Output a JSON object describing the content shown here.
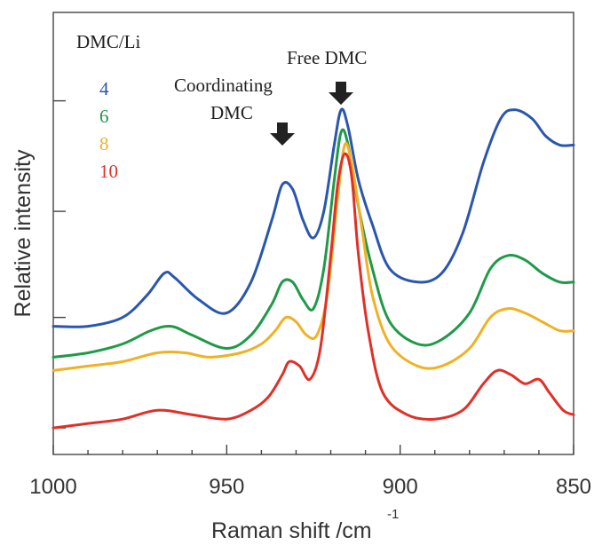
{
  "chart_data": {
    "type": "line",
    "title": "",
    "xlabel": "Raman shift /cm",
    "xlabel_superscript": "-1",
    "ylabel": "Relative intensity",
    "xlim": [
      1000,
      850
    ],
    "x_reversed": true,
    "y_tick_labels_shown": false,
    "x_ticks": [
      {
        "value": 1000,
        "label": "1000"
      },
      {
        "value": 950,
        "label": "950"
      },
      {
        "value": 900,
        "label": "900"
      },
      {
        "value": 850,
        "label": "850"
      }
    ],
    "legend": {
      "title": "DMC/Li",
      "placement": "top-left",
      "entries": [
        {
          "label": "4",
          "color": "#2a56b0"
        },
        {
          "label": "6",
          "color": "#1f9a48"
        },
        {
          "label": "8",
          "color": "#f0b124"
        },
        {
          "label": "10",
          "color": "#e03028"
        }
      ]
    },
    "annotations": [
      {
        "text_lines": [
          "Coordinating",
          "DMC"
        ],
        "arrow_x": 932
      },
      {
        "text_lines": [
          "Free DMC"
        ],
        "arrow_x": 917
      }
    ],
    "series": [
      {
        "name": "4",
        "color": "#2a56b0",
        "points": [
          [
            1000,
            0.29
          ],
          [
            990,
            0.29
          ],
          [
            980,
            0.31
          ],
          [
            973,
            0.36
          ],
          [
            968,
            0.41
          ],
          [
            965,
            0.4
          ],
          [
            958,
            0.35
          ],
          [
            950,
            0.32
          ],
          [
            943,
            0.39
          ],
          [
            937,
            0.53
          ],
          [
            934,
            0.61
          ],
          [
            931,
            0.6
          ],
          [
            928,
            0.53
          ],
          [
            925,
            0.49
          ],
          [
            922,
            0.55
          ],
          [
            919,
            0.7
          ],
          [
            917,
            0.78
          ],
          [
            915,
            0.74
          ],
          [
            912,
            0.62
          ],
          [
            908,
            0.52
          ],
          [
            903,
            0.42
          ],
          [
            895,
            0.39
          ],
          [
            888,
            0.41
          ],
          [
            882,
            0.5
          ],
          [
            876,
            0.66
          ],
          [
            871,
            0.76
          ],
          [
            867,
            0.78
          ],
          [
            862,
            0.76
          ],
          [
            858,
            0.72
          ],
          [
            854,
            0.7
          ],
          [
            850,
            0.7
          ]
        ]
      },
      {
        "name": "6",
        "color": "#1f9a48",
        "points": [
          [
            1000,
            0.22
          ],
          [
            990,
            0.23
          ],
          [
            980,
            0.25
          ],
          [
            972,
            0.28
          ],
          [
            966,
            0.29
          ],
          [
            960,
            0.27
          ],
          [
            950,
            0.24
          ],
          [
            943,
            0.27
          ],
          [
            937,
            0.34
          ],
          [
            934,
            0.39
          ],
          [
            931,
            0.39
          ],
          [
            928,
            0.35
          ],
          [
            925,
            0.33
          ],
          [
            922,
            0.42
          ],
          [
            919,
            0.62
          ],
          [
            917,
            0.73
          ],
          [
            915,
            0.7
          ],
          [
            912,
            0.56
          ],
          [
            908,
            0.42
          ],
          [
            903,
            0.3
          ],
          [
            895,
            0.25
          ],
          [
            888,
            0.26
          ],
          [
            880,
            0.32
          ],
          [
            874,
            0.42
          ],
          [
            869,
            0.45
          ],
          [
            864,
            0.44
          ],
          [
            859,
            0.41
          ],
          [
            854,
            0.39
          ],
          [
            850,
            0.39
          ]
        ]
      },
      {
        "name": "8",
        "color": "#f0b124",
        "points": [
          [
            1000,
            0.19
          ],
          [
            990,
            0.2
          ],
          [
            980,
            0.21
          ],
          [
            970,
            0.23
          ],
          [
            962,
            0.23
          ],
          [
            955,
            0.22
          ],
          [
            946,
            0.23
          ],
          [
            940,
            0.25
          ],
          [
            936,
            0.28
          ],
          [
            933,
            0.31
          ],
          [
            930,
            0.3
          ],
          [
            927,
            0.27
          ],
          [
            924,
            0.27
          ],
          [
            921,
            0.36
          ],
          [
            918,
            0.58
          ],
          [
            916,
            0.7
          ],
          [
            914,
            0.66
          ],
          [
            911,
            0.51
          ],
          [
            908,
            0.36
          ],
          [
            903,
            0.25
          ],
          [
            895,
            0.2
          ],
          [
            888,
            0.2
          ],
          [
            880,
            0.24
          ],
          [
            874,
            0.31
          ],
          [
            869,
            0.33
          ],
          [
            864,
            0.32
          ],
          [
            859,
            0.3
          ],
          [
            854,
            0.28
          ],
          [
            850,
            0.28
          ]
        ]
      },
      {
        "name": "10",
        "color": "#e03028",
        "points": [
          [
            1000,
            0.06
          ],
          [
            990,
            0.07
          ],
          [
            980,
            0.08
          ],
          [
            970,
            0.1
          ],
          [
            960,
            0.09
          ],
          [
            950,
            0.08
          ],
          [
            943,
            0.1
          ],
          [
            938,
            0.13
          ],
          [
            934,
            0.18
          ],
          [
            932,
            0.21
          ],
          [
            929,
            0.2
          ],
          [
            926,
            0.17
          ],
          [
            923,
            0.24
          ],
          [
            920,
            0.45
          ],
          [
            918,
            0.61
          ],
          [
            916,
            0.68
          ],
          [
            914,
            0.63
          ],
          [
            912,
            0.45
          ],
          [
            909,
            0.27
          ],
          [
            905,
            0.14
          ],
          [
            898,
            0.09
          ],
          [
            890,
            0.08
          ],
          [
            882,
            0.1
          ],
          [
            876,
            0.16
          ],
          [
            872,
            0.19
          ],
          [
            868,
            0.18
          ],
          [
            864,
            0.16
          ],
          [
            860,
            0.17
          ],
          [
            857,
            0.14
          ],
          [
            853,
            0.1
          ],
          [
            850,
            0.09
          ]
        ]
      }
    ]
  }
}
